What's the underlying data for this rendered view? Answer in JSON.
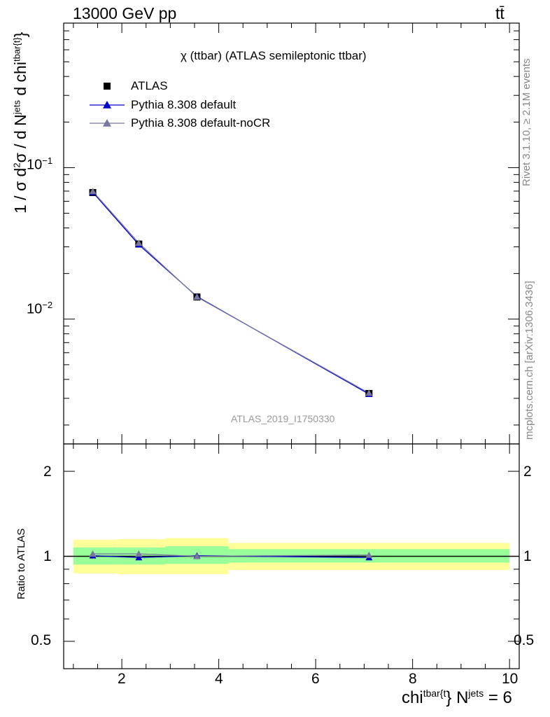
{
  "header": {
    "left": "13000 GeV pp",
    "right": "tt̄"
  },
  "side_labels": {
    "rivet": "Rivet 3.1.10, ≥ 2.1M events",
    "mcplots": "mcplots.cern.ch [arXiv:1306.3436]"
  },
  "chart_data": [
    {
      "type": "line",
      "title": "χ (ttbar) (ATLAS semileptonic ttbar)",
      "watermark": "ATLAS_2019_I1750330",
      "ylabel": "1 / σ d²σ / d N^{jets} d chi^{tbar{t}}",
      "yscale": "log",
      "ylim": [
        0.0015,
        0.9
      ],
      "xlim": [
        0.8,
        10.2
      ],
      "y_tick_labels": [
        "10⁻²",
        "10⁻¹"
      ],
      "legend_position": "top-left",
      "series": [
        {
          "name": "ATLAS",
          "marker": "square",
          "color": "#000000",
          "x": [
            1.4,
            2.35,
            3.55,
            7.1
          ],
          "y": [
            0.0685,
            0.0313,
            0.014,
            0.00323
          ]
        },
        {
          "name": "Pythia 8.308 default",
          "marker": "triangle",
          "color": "#0000cc",
          "x": [
            1.4,
            2.35,
            3.55,
            7.1
          ],
          "y": [
            0.0688,
            0.031,
            0.0141,
            0.0032
          ]
        },
        {
          "name": "Pythia 8.308 default-noCR",
          "marker": "triangle",
          "color": "#7777a0",
          "x": [
            1.4,
            2.35,
            3.55,
            7.1
          ],
          "y": [
            0.0698,
            0.0318,
            0.014,
            0.00325
          ]
        }
      ]
    },
    {
      "type": "line",
      "ylabel": "Ratio to ATLAS",
      "xlabel": "chi^{tbar{t}} N^{jets} = 6",
      "yscale": "log",
      "ylim": [
        0.4,
        2.5
      ],
      "xlim": [
        0.8,
        10.2
      ],
      "x_ticks": [
        2,
        4,
        6,
        8,
        10
      ],
      "y_ticks": [
        0.5,
        1,
        2
      ],
      "y_tick_labels": [
        "0.5",
        "1",
        "2"
      ],
      "uncertainty_bands": [
        {
          "x_low": 1.0,
          "x_high": 1.9,
          "stat_low": 0.935,
          "stat_high": 1.075,
          "total_low": 0.87,
          "total_high": 1.145
        },
        {
          "x_low": 1.9,
          "x_high": 2.9,
          "stat_low": 0.935,
          "stat_high": 1.075,
          "total_low": 0.865,
          "total_high": 1.15
        },
        {
          "x_low": 2.9,
          "x_high": 4.2,
          "stat_low": 0.94,
          "stat_high": 1.085,
          "total_low": 0.865,
          "total_high": 1.16
        },
        {
          "x_low": 4.2,
          "x_high": 10.0,
          "stat_low": 0.95,
          "stat_high": 1.06,
          "total_low": 0.895,
          "total_high": 1.115
        }
      ],
      "series": [
        {
          "name": "Pythia 8.308 default",
          "color": "#0000cc",
          "x": [
            1.4,
            2.35,
            3.55,
            7.1
          ],
          "y": [
            1.005,
            0.99,
            1.005,
            0.99
          ]
        },
        {
          "name": "Pythia 8.308 default-noCR",
          "color": "#7777a0",
          "x": [
            1.4,
            2.35,
            3.55,
            7.1
          ],
          "y": [
            1.02,
            1.02,
            1.0,
            1.01
          ]
        }
      ]
    }
  ]
}
